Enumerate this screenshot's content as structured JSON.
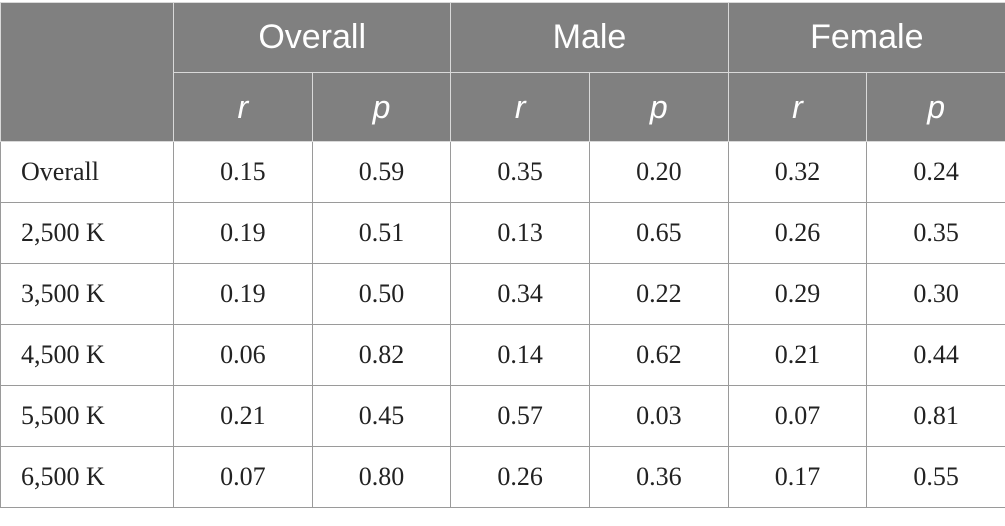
{
  "table": {
    "groups": [
      "Overall",
      "Male",
      "Female"
    ],
    "subheaders": [
      "r",
      "p",
      "r",
      "p",
      "r",
      "p"
    ],
    "rows": [
      {
        "label": "Overall",
        "values": [
          "0.15",
          "0.59",
          "0.35",
          "0.20",
          "0.32",
          "0.24"
        ]
      },
      {
        "label": "2,500 K",
        "values": [
          "0.19",
          "0.51",
          "0.13",
          "0.65",
          "0.26",
          "0.35"
        ]
      },
      {
        "label": "3,500 K",
        "values": [
          "0.19",
          "0.50",
          "0.34",
          "0.22",
          "0.29",
          "0.30"
        ]
      },
      {
        "label": "4,500 K",
        "values": [
          "0.06",
          "0.82",
          "0.14",
          "0.62",
          "0.21",
          "0.44"
        ]
      },
      {
        "label": "5,500 K",
        "values": [
          "0.21",
          "0.45",
          "0.57",
          "0.03",
          "0.07",
          "0.81"
        ]
      },
      {
        "label": "6,500 K",
        "values": [
          "0.07",
          "0.80",
          "0.26",
          "0.36",
          "0.17",
          "0.55"
        ]
      }
    ]
  },
  "colors": {
    "header_bg": "#808080",
    "header_text": "#ffffff",
    "grid_line": "#9a9a9a",
    "body_text": "#222222"
  }
}
